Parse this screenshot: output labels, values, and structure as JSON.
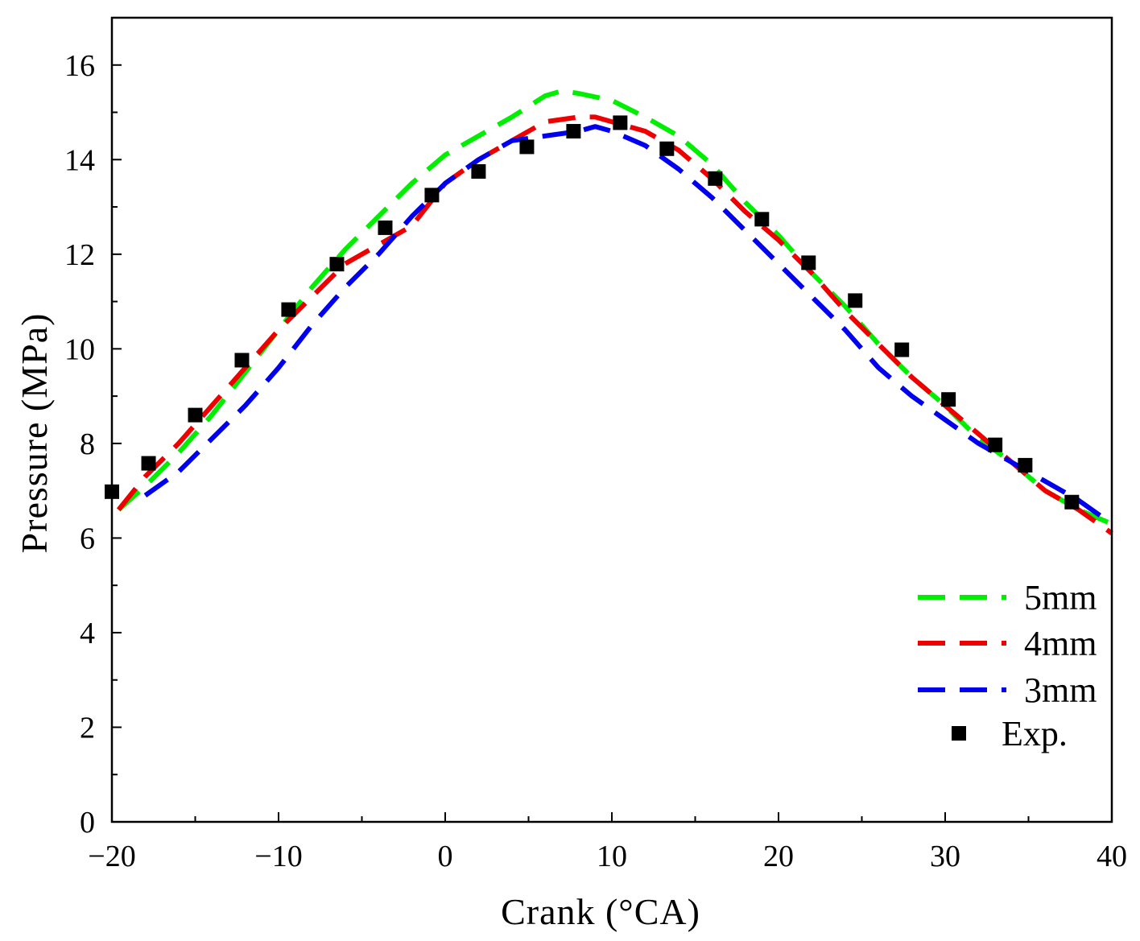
{
  "chart_data": {
    "type": "line",
    "xlabel": "Crank (°CA)",
    "ylabel": "Pressure (MPa)",
    "xlim": [
      -20,
      40
    ],
    "ylim": [
      0,
      17
    ],
    "x_ticks": [
      -20,
      -10,
      0,
      10,
      20,
      30,
      40
    ],
    "x_tick_labels": [
      "−20",
      "−10",
      "0",
      "10",
      "20",
      "30",
      "40"
    ],
    "y_ticks": [
      0,
      2,
      4,
      6,
      8,
      10,
      12,
      14,
      16
    ],
    "y_tick_labels": [
      "0",
      "2",
      "4",
      "6",
      "8",
      "10",
      "12",
      "14",
      "16"
    ],
    "grid": false,
    "legend_position": "bottom-right",
    "series": [
      {
        "name": "5mm",
        "style": "dashed-line",
        "color": "#00ee00",
        "x": [
          -19.6,
          -18,
          -16,
          -14,
          -12,
          -10,
          -8,
          -6,
          -4,
          -2,
          0,
          2,
          4,
          6,
          7,
          8,
          10,
          12,
          14,
          16,
          18,
          20,
          22,
          24,
          26,
          28,
          30,
          32,
          34,
          36,
          38,
          40
        ],
        "y": [
          6.6,
          7.1,
          7.8,
          8.6,
          9.5,
          10.4,
          11.3,
          12.1,
          12.8,
          13.5,
          14.1,
          14.5,
          14.9,
          15.35,
          15.45,
          15.4,
          15.25,
          14.9,
          14.5,
          13.9,
          13.1,
          12.4,
          11.6,
          10.9,
          10.1,
          9.4,
          8.8,
          8.1,
          7.6,
          7.0,
          6.6,
          6.3
        ]
      },
      {
        "name": "4mm",
        "style": "dashed-line",
        "color": "#ee0000",
        "x": [
          -19.6,
          -18,
          -16,
          -14,
          -12,
          -10,
          -8,
          -6,
          -4,
          -2,
          0,
          2,
          4,
          6,
          8,
          9,
          10,
          12,
          14,
          16,
          18,
          20,
          22,
          24,
          26,
          28,
          30,
          32,
          34,
          36,
          38,
          40
        ],
        "y": [
          6.6,
          7.3,
          8.0,
          8.8,
          9.6,
          10.4,
          11.1,
          11.8,
          12.2,
          12.6,
          13.5,
          14.0,
          14.4,
          14.8,
          14.9,
          14.9,
          14.8,
          14.6,
          14.2,
          13.6,
          12.9,
          12.3,
          11.6,
          10.8,
          10.1,
          9.4,
          8.8,
          8.2,
          7.6,
          7.0,
          6.6,
          6.1
        ]
      },
      {
        "name": "3mm",
        "style": "dashed-line",
        "color": "#0000ee",
        "x": [
          -18,
          -16,
          -14,
          -12,
          -10,
          -8,
          -6,
          -4,
          -2,
          0,
          2,
          4,
          6,
          8,
          9,
          10,
          12,
          14,
          16,
          18,
          20,
          22,
          24,
          26,
          28,
          30,
          32,
          34,
          36,
          38,
          40
        ],
        "y": [
          6.9,
          7.4,
          8.1,
          8.8,
          9.6,
          10.5,
          11.3,
          12.0,
          12.8,
          13.5,
          14.0,
          14.4,
          14.5,
          14.6,
          14.7,
          14.6,
          14.3,
          13.8,
          13.2,
          12.5,
          11.8,
          11.1,
          10.4,
          9.6,
          9.0,
          8.5,
          8.0,
          7.6,
          7.2,
          6.8,
          6.3
        ]
      },
      {
        "name": "Exp.",
        "style": "square-marker",
        "color": "#000000",
        "x": [
          -20,
          -17.8,
          -15,
          -12.2,
          -9.4,
          -6.5,
          -3.6,
          -0.8,
          2.0,
          4.9,
          7.7,
          10.5,
          13.3,
          16.2,
          19.0,
          21.8,
          24.6,
          27.4,
          30.2,
          33.0,
          34.8,
          37.6
        ],
        "y": [
          6.98,
          7.58,
          8.6,
          9.76,
          10.83,
          11.79,
          12.56,
          13.25,
          13.75,
          14.27,
          14.6,
          14.78,
          14.23,
          13.6,
          12.74,
          11.82,
          11.02,
          9.98,
          8.93,
          7.97,
          7.54,
          6.76
        ]
      }
    ]
  }
}
